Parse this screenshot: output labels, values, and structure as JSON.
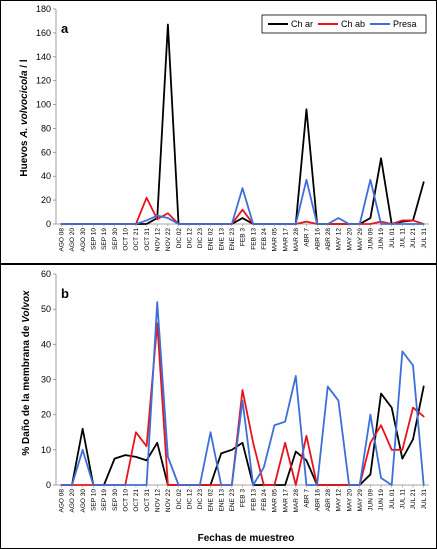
{
  "colors": {
    "char": "#000000",
    "chab": "#e8141c",
    "presa": "#3d6fd8"
  },
  "chart_data": [
    {
      "type": "line",
      "panel": "a",
      "ylabel_prefix": "Huevos ",
      "ylabel_italic": "A. volvocicola",
      "ylabel_suffix": " / l",
      "ylim": [
        0,
        180
      ],
      "yticks": [
        0,
        20,
        40,
        60,
        80,
        100,
        120,
        140,
        160,
        180
      ],
      "legend_position": "top-right",
      "categories": [
        "AGO 08",
        "AGO 20",
        "AGO 30",
        "SEP 10",
        "SEP 19",
        "SEP 30",
        "OCT 10",
        "OCT 21",
        "OCT 31",
        "NOV 12",
        "NOV 22",
        "DIC 02",
        "DIC 12",
        "DIC 23",
        "ENE 02",
        "ENE 13",
        "ENE 23",
        "FEB 3",
        "FEB 13",
        "FEB 24",
        "MAR 05",
        "MAR 17",
        "MAR 28",
        "ABR 7",
        "ABR 16",
        "ABR 28",
        "MAY 12",
        "MAY 20",
        "MAY 29",
        "JUN 09",
        "JUN 19",
        "JUL 01",
        "JUL 11",
        "JUL 21",
        "JUL 31"
      ],
      "series": [
        {
          "name": "Ch ar",
          "color_key": "char",
          "values": [
            0,
            0,
            0,
            0,
            0,
            0,
            0,
            0,
            0,
            5,
            167,
            0,
            0,
            0,
            0,
            0,
            0,
            5,
            0,
            0,
            0,
            0,
            0,
            96,
            0,
            0,
            0,
            0,
            0,
            5,
            55,
            0,
            2,
            3,
            35
          ]
        },
        {
          "name": "Ch ab",
          "color_key": "chab",
          "values": [
            0,
            0,
            0,
            0,
            0,
            0,
            0,
            0,
            22,
            4,
            9,
            0,
            0,
            0,
            0,
            0,
            0,
            12,
            0,
            0,
            0,
            0,
            0,
            2,
            0,
            0,
            0,
            0,
            0,
            0,
            2,
            0,
            3,
            3,
            0
          ]
        },
        {
          "name": "Presa",
          "color_key": "presa",
          "values": [
            0,
            0,
            0,
            0,
            0,
            0,
            0,
            0,
            3,
            7,
            5,
            0,
            0,
            0,
            0,
            0,
            0,
            30,
            0,
            0,
            0,
            0,
            0,
            37,
            0,
            0,
            5,
            0,
            0,
            37,
            0,
            0,
            0,
            0,
            0
          ]
        }
      ]
    },
    {
      "type": "line",
      "panel": "b",
      "ylabel_prefix": "% Daño de la membrana de ",
      "ylabel_italic": "Volvox",
      "ylabel_suffix": "",
      "xlabel": "Fechas de muestreo",
      "ylim": [
        0,
        60
      ],
      "yticks": [
        0,
        10,
        20,
        30,
        40,
        50,
        60
      ],
      "categories": [
        "AGO 08",
        "AGO 20",
        "AGO 30",
        "SEP 10",
        "SEP 19",
        "SEP 30",
        "OCT 10",
        "OCT 21",
        "OCT 31",
        "NOV 12",
        "NOV 22",
        "DIC 02",
        "DIC 12",
        "DIC 23",
        "ENE 02",
        "ENE 13",
        "ENE 23",
        "FEB 3",
        "FEB 13",
        "FEB 24",
        "MAR 05",
        "MAR 17",
        "MAR 28",
        "ABR 7",
        "ABR 16",
        "ABR 28",
        "MAY 12",
        "MAY 20",
        "MAY 29",
        "JUN 09",
        "JUN 19",
        "JUL 01",
        "JUL 11",
        "JUL 21",
        "JUL 31"
      ],
      "series": [
        {
          "name": "Ch ar",
          "color_key": "char",
          "values": [
            0,
            0,
            16,
            0,
            0,
            7.5,
            8.5,
            8,
            7,
            12,
            0,
            0,
            0,
            0,
            0,
            9,
            10,
            12,
            0,
            0,
            0,
            0,
            9.5,
            7,
            0,
            0,
            0,
            0,
            0,
            3,
            26,
            22,
            7.5,
            13,
            28
          ]
        },
        {
          "name": "Ch ab",
          "color_key": "chab",
          "values": [
            0,
            0,
            0,
            0,
            0,
            0,
            0,
            15,
            11,
            46,
            0,
            0,
            0,
            0,
            0,
            0,
            0,
            27,
            12,
            0,
            0,
            12,
            0,
            14,
            0,
            0,
            0,
            0,
            0,
            12,
            17,
            10,
            10,
            22,
            19.5
          ]
        },
        {
          "name": "Presa",
          "color_key": "presa",
          "values": [
            0,
            0,
            10,
            0,
            0,
            0,
            0,
            0,
            0,
            52,
            8,
            0,
            0,
            0,
            15,
            0,
            0,
            24,
            0,
            5,
            17,
            18,
            31,
            0,
            0,
            28,
            24,
            0,
            0,
            20,
            2,
            0,
            38,
            34,
            0
          ]
        }
      ]
    }
  ]
}
